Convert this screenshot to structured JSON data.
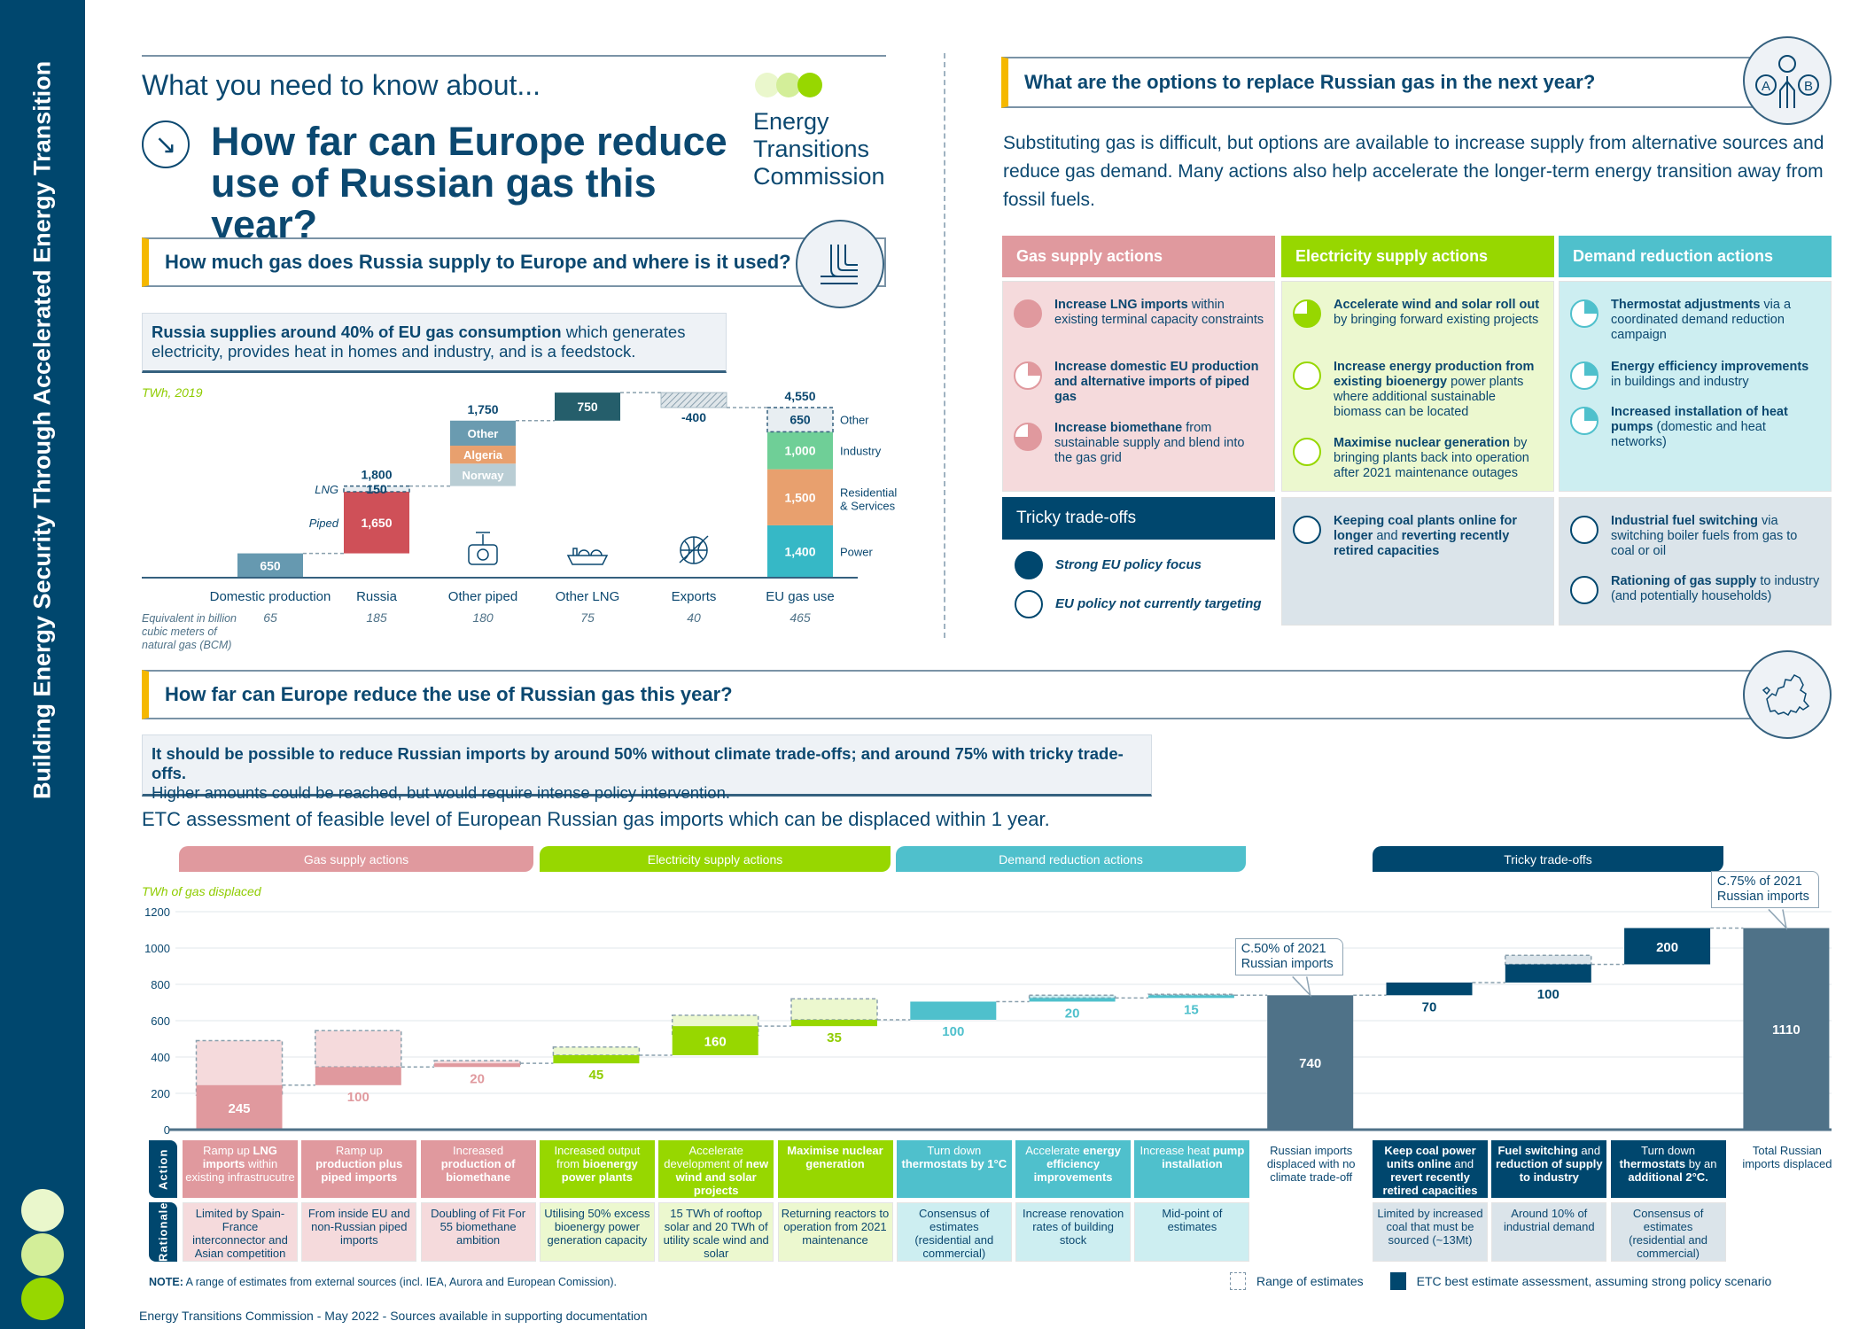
{
  "sidebar": {
    "title": "Building Energy Security Through Accelerated Energy Transition",
    "dot_colors": [
      "#eaf7cc",
      "#d3ee99",
      "#97d700"
    ]
  },
  "header": {
    "kicker": "What you need to know about...",
    "title": "How far can Europe reduce use of Russian gas this year?",
    "arrow_icon": "arrow-down-right-icon",
    "logo_text": [
      "Energy",
      "Transitions",
      "Commission"
    ]
  },
  "section1": {
    "heading": "How much gas does Russia supply to Europe and where is it used?",
    "icon": "pipeline-icon",
    "info_bold": "Russia supplies around 40% of EU gas consumption",
    "info_rest": " which generates electricity, provides heat in homes and industry, and is a feedstock."
  },
  "section2": {
    "heading": "What are the options to replace Russian gas in the next year?",
    "icon": "a-to-b-options-icon",
    "paragraph": "Substituting gas is difficult, but options are available to increase supply from alternative sources and reduce gas demand. Many actions also help accelerate the longer-term energy transition away from fossil fuels.",
    "columns": [
      {
        "title": "Gas supply actions",
        "color": "#e0999e",
        "light": "#f5dadc",
        "pie": "#e0999e",
        "items": [
          {
            "bold": "Increase LNG imports",
            "text": " within existing terminal capacity constraints",
            "policy_focus": 1
          },
          {
            "bold": "Increase domestic EU production and alternative imports of piped gas",
            "text": "",
            "policy_focus": 0.25
          },
          {
            "bold": "Increase biomethane",
            "text": " from sustainable supply and blend into the gas grid",
            "policy_focus": 0.75
          }
        ]
      },
      {
        "title": "Electricity supply actions",
        "color": "#97d700",
        "light": "#ecf8cf",
        "pie": "#97d700",
        "items": [
          {
            "bold": "Accelerate wind and solar roll out",
            "text": " by bringing forward existing projects",
            "policy_focus": 0.75
          },
          {
            "bold": "Increase energy production from existing bioenergy",
            "text": " power plants where additional sustainable biomass can be located",
            "policy_focus": 0
          },
          {
            "bold": "Maximise nuclear generation",
            "text": " by bringing plants back into operation after 2021 maintenance outages",
            "policy_focus": 0
          }
        ]
      },
      {
        "title": "Demand reduction actions",
        "color": "#4fc0cc",
        "light": "#cdeef1",
        "pie": "#4fc0cc",
        "items": [
          {
            "bold": "Thermostat adjustments",
            "text": " via a coordinated demand reduction campaign",
            "policy_focus": 0.25
          },
          {
            "bold": "Energy efficiency improvements",
            "text": " in buildings and industry",
            "policy_focus": 0.25
          },
          {
            "bold": "Increased installation of heat pumps",
            "text": " (domestic and heat networks)",
            "policy_focus": 0.25
          }
        ]
      }
    ],
    "tricky": {
      "title": "Tricky trade-offs",
      "color": "#00476e",
      "light": "#dbe4ea",
      "legend": [
        {
          "label": "Strong EU policy focus",
          "policy_focus": 1
        },
        {
          "label": "EU policy not currently targeting",
          "policy_focus": 0
        }
      ],
      "electricity_items": [
        {
          "parts": [
            [
              "Keeping coal plants online for longer",
              1
            ],
            [
              " and ",
              0
            ],
            [
              "reverting recently retired capacities",
              1
            ]
          ],
          "policy_focus": 0
        }
      ],
      "demand_items": [
        {
          "parts": [
            [
              "Industrial fuel switching",
              1
            ],
            [
              " via switching boiler fuels from gas to coal or oil",
              0
            ]
          ],
          "policy_focus": 0
        },
        {
          "parts": [
            [
              "Rationing of gas supply",
              1
            ],
            [
              " to industry (and potentially households)",
              0
            ]
          ],
          "policy_focus": 0
        }
      ]
    }
  },
  "section3": {
    "heading": "How far can Europe reduce the use of Russian gas this year?",
    "icon": "europe-map-icon",
    "info_bold": "It should be possible to reduce Russian imports by around 50% without climate trade-offs; and around 75% with tricky trade-offs.",
    "info_rest": "Higher amounts could be reached, but would require intense policy intervention.",
    "subtitle": "ETC assessment of feasible level of European Russian gas imports which can be displaced within 1 year.",
    "tabs": [
      {
        "label": "Gas supply actions",
        "color": "#e0999e"
      },
      {
        "label": "Electricity supply actions",
        "color": "#97d700"
      },
      {
        "label": "Demand reduction actions",
        "color": "#4fc0cc"
      },
      {
        "label": "Tricky trade-offs",
        "color": "#00476e"
      }
    ],
    "row_labels": {
      "action": "Action",
      "rationale": "Rationale"
    },
    "note_bold": "NOTE:",
    "note_text": " A range of estimates from external sources (incl. IEA, Aurora and European Comission).",
    "legend": {
      "range": "Range of estimates",
      "best": "ETC best estimate assessment, assuming strong policy scenario"
    }
  },
  "footer": "Energy Transitions Commission - May 2022 - Sources available in supporting documentation",
  "chart_data": [
    {
      "type": "bar",
      "subtype": "waterfall",
      "unit_label": "TWh, 2019",
      "bcm_label": "Equivalent in billion cubic meters of natural gas (BCM)",
      "steps": [
        {
          "category": "Domestic production",
          "bcm": "65",
          "segments": [
            {
              "name": "",
              "value": 650,
              "color": "#6699b0"
            }
          ]
        },
        {
          "category": "Russia",
          "bcm": "185",
          "total": 1800,
          "label_side": "left",
          "segments": [
            {
              "name": "Piped",
              "value": 1650,
              "color": "#cf5058"
            },
            {
              "name": "LNG",
              "value": 150,
              "color": "#e8eef2",
              "dashed": true
            }
          ]
        },
        {
          "category": "Other piped",
          "bcm": "180",
          "total": 1750,
          "label_side": "inside",
          "icon": "valve-icon",
          "segments": [
            {
              "name": "Norway",
              "value": 600,
              "color": "#b9cdd4"
            },
            {
              "name": "Algeria",
              "value": 480,
              "color": "#e8a06e"
            },
            {
              "name": "Other",
              "value": 670,
              "color": "#6a9bb0"
            }
          ]
        },
        {
          "category": "Other LNG",
          "bcm": "75",
          "icon": "lng-ship-icon",
          "segments": [
            {
              "name": "",
              "value": 750,
              "color": "#255e6b"
            }
          ]
        },
        {
          "category": "Exports",
          "bcm": "40",
          "icon": "globe-export-icon",
          "segments": [
            {
              "name": "",
              "value": -400,
              "color": "#a9bcc6",
              "hatched": true
            }
          ]
        },
        {
          "category": "EU gas use",
          "bcm": "465",
          "total": 4550,
          "label_side": "right",
          "is_total": true,
          "segments": [
            {
              "name": "Power",
              "value": 1400,
              "color": "#36b8c6"
            },
            {
              "name": "Residential & Services",
              "value": 1500,
              "color": "#e8a06e"
            },
            {
              "name": "Industry",
              "value": 1000,
              "color": "#6fcf97"
            },
            {
              "name": "Other",
              "value": 650,
              "color": "#e8eef2",
              "dashed": true
            }
          ]
        }
      ]
    },
    {
      "type": "bar",
      "subtype": "waterfall",
      "ylabel": "TWh of gas displaced",
      "ylim": [
        0,
        1200
      ],
      "yticks": [
        0,
        200,
        400,
        600,
        800,
        1000,
        1200
      ],
      "grid": true,
      "steps": [
        {
          "value": 245,
          "range": [
            190,
            490
          ],
          "group": "gas",
          "action": [
            [
              "Ramp up ",
              0
            ],
            [
              "LNG imports",
              1
            ],
            [
              " within existing infrastrucutre",
              0
            ]
          ],
          "rationale": "Limited by Spain-France interconnector and Asian competition"
        },
        {
          "value": 100,
          "range": [
            345,
            545
          ],
          "group": "gas",
          "action": [
            [
              "Ramp up ",
              0
            ],
            [
              "production plus piped imports",
              1
            ]
          ],
          "rationale": "From inside EU and non-Russian piped imports"
        },
        {
          "value": 20,
          "range": [
            355,
            380
          ],
          "group": "gas",
          "action": [
            [
              "Increased ",
              0
            ],
            [
              "production of biomethane",
              1
            ]
          ],
          "rationale": "Doubling of Fit For 55 biomethane ambition"
        },
        {
          "value": 45,
          "range": [
            410,
            455
          ],
          "group": "electricity",
          "action": [
            [
              "Increased output from ",
              0
            ],
            [
              "bioenergy power plants",
              1
            ]
          ],
          "rationale": "Utilising 50% excess bioenergy power generation capacity"
        },
        {
          "value": 160,
          "range": [
            520,
            630
          ],
          "group": "electricity",
          "action": [
            [
              "Accelerate development of ",
              0
            ],
            [
              "new wind and solar projects",
              1
            ]
          ],
          "rationale": "15 TWh of rooftop solar and 20 TWh of utility scale wind and solar"
        },
        {
          "value": 35,
          "range": [
            605,
            720
          ],
          "group": "electricity",
          "action": [
            [
              "Maximise nuclear generation",
              1
            ]
          ],
          "rationale": "Returning reactors to operation from 2021 maintenance"
        },
        {
          "value": 100,
          "group": "demand",
          "action": [
            [
              "Turn down ",
              0
            ],
            [
              "thermostats by 1°C",
              1
            ]
          ],
          "rationale": "Consensus of estimates (residential and commercial)"
        },
        {
          "value": 20,
          "range": [
            725,
            740
          ],
          "group": "demand",
          "action": [
            [
              "Accelerate ",
              0
            ],
            [
              "energy efficiency improvements",
              1
            ]
          ],
          "rationale": "Increase renovation rates of building stock"
        },
        {
          "value": 15,
          "range": [
            740,
            745
          ],
          "group": "demand",
          "action": [
            [
              "Increase heat ",
              0
            ],
            [
              "pump installation",
              1
            ]
          ],
          "rationale": "Mid-point of estimates"
        },
        {
          "value": 740,
          "total": true,
          "group": "total",
          "callout": "C.50% of 2021 Russian imports",
          "action": [
            [
              "Russian imports displaced with no climate trade-off",
              0
            ]
          ]
        },
        {
          "value": 70,
          "group": "tricky",
          "action": [
            [
              "Keep coal power units online",
              1
            ],
            [
              " and ",
              0
            ],
            [
              "revert recently retired capacities",
              1
            ]
          ],
          "rationale": "Limited by increased coal that must be sourced (~13Mt)"
        },
        {
          "value": 100,
          "range": [
            910,
            960
          ],
          "group": "tricky",
          "action": [
            [
              "Fuel switching",
              1
            ],
            [
              " and ",
              0
            ],
            [
              "reduction of supply to industry",
              1
            ]
          ],
          "rationale": "Around 10% of industrial demand"
        },
        {
          "value": 200,
          "group": "tricky",
          "action": [
            [
              "Turn down ",
              0
            ],
            [
              "thermostats",
              1
            ],
            [
              " by an ",
              0
            ],
            [
              "additional  2°C.",
              1
            ]
          ],
          "rationale": "Consensus of estimates (residential and commercial)"
        },
        {
          "value": 1110,
          "total": true,
          "group": "total",
          "callout": "C.75% of 2021 Russian imports",
          "action": [
            [
              "Total Russian imports displaced",
              0
            ]
          ]
        }
      ],
      "group_colors": {
        "gas": {
          "main": "#e0999e",
          "light": "#f5dadc",
          "text": "#e0999e"
        },
        "electricity": {
          "main": "#97d700",
          "light": "#ecf8cf",
          "text": "#8fcc00"
        },
        "demand": {
          "main": "#4fc0cc",
          "light": "#cdeef1",
          "text": "#4fc0cc"
        },
        "tricky": {
          "main": "#00476e",
          "light": "#dbe4ea",
          "text": "#00476e"
        },
        "total": {
          "main": "#4f7288",
          "light": "#ffffff",
          "text": "#4f7288"
        }
      }
    }
  ]
}
